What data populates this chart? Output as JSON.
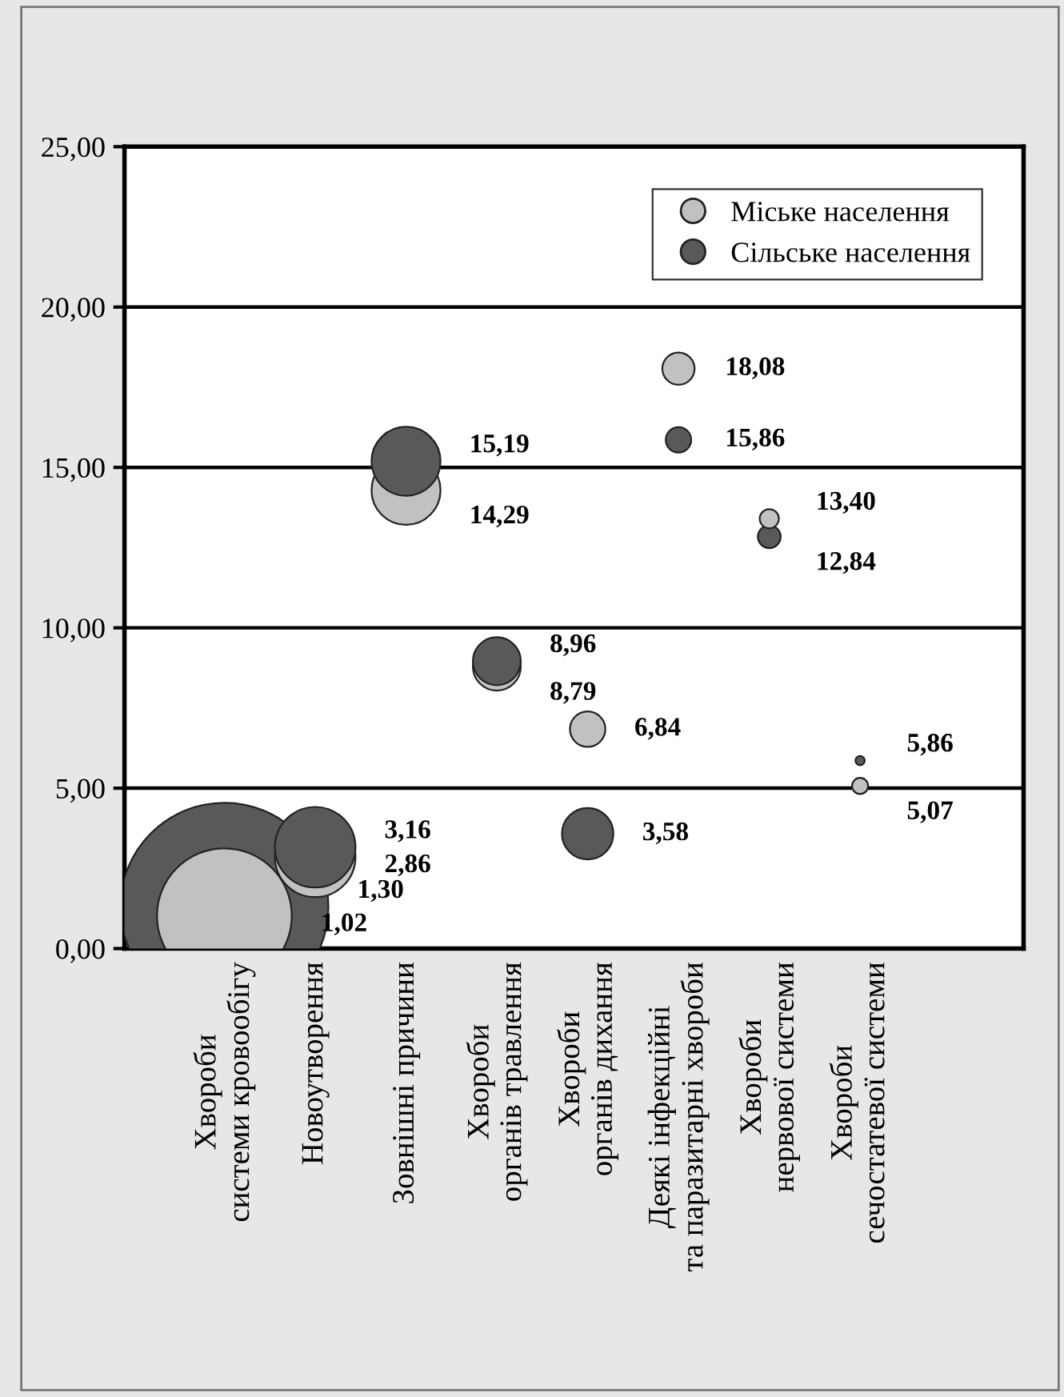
{
  "chart_data": {
    "type": "bubble",
    "categories": [
      "Хвороби\nсистеми кровообігу",
      "Новоутворення",
      "Зовнішні причини",
      "Хвороби\nорганів травлення",
      "Хвороби\nорганів дихання",
      "Деякі інфекційні\nта паразитарні хвороби",
      "Хвороби\nнервової системи",
      "Хвороби\nсечостатевої системи"
    ],
    "series": [
      {
        "name": "Міське населення",
        "color": "#c0c1c2",
        "values": [
          1.02,
          2.86,
          14.29,
          8.79,
          6.84,
          18.08,
          13.4,
          5.07
        ],
        "sizes": [
          0.42,
          0.15,
          0.11,
          0.053,
          0.029,
          0.024,
          0.0085,
          0.006
        ],
        "value_labels": [
          "1,02",
          "2,86",
          "14,29",
          "8,79",
          "6,84",
          "18,08",
          "13,40",
          "5,07"
        ]
      },
      {
        "name": "Сільське населення",
        "color": "#58595b",
        "values": [
          1.3,
          3.16,
          15.19,
          8.96,
          3.58,
          15.86,
          12.84,
          5.86
        ],
        "sizes": [
          1.0,
          0.15,
          0.11,
          0.053,
          0.061,
          0.015,
          0.012,
          0.002
        ],
        "value_labels": [
          "1,30",
          "3,16",
          "15,19",
          "8,96",
          "3,58",
          "15,86",
          "12,84",
          "5,86"
        ]
      }
    ],
    "ylim": [
      0,
      25
    ],
    "yticks": [
      {
        "value": 0,
        "label": "0,00"
      },
      {
        "value": 5,
        "label": "5,00"
      },
      {
        "value": 10,
        "label": "10,00"
      },
      {
        "value": 15,
        "label": "15,00"
      },
      {
        "value": 20,
        "label": "20,00"
      },
      {
        "value": 25,
        "label": "25,00"
      }
    ],
    "grid": "y",
    "legend": "top right"
  }
}
